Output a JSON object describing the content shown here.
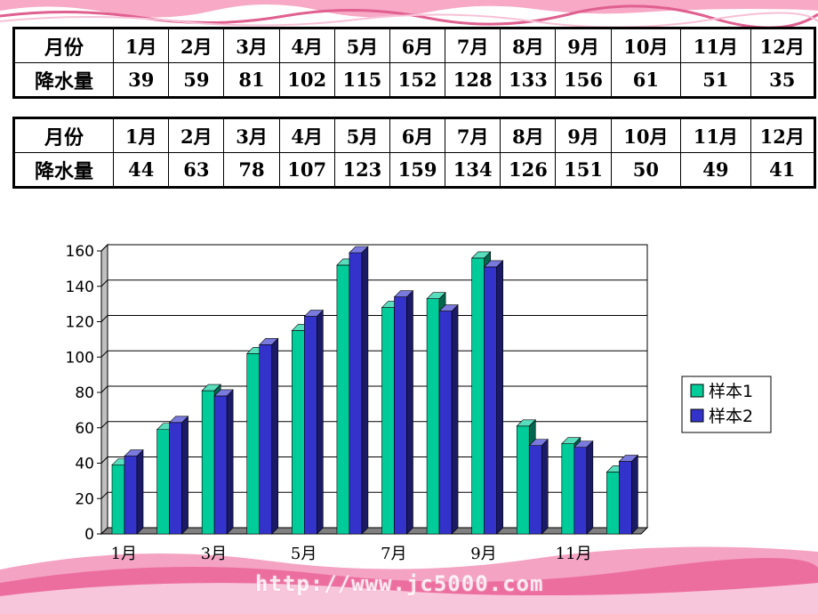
{
  "tables": [
    {
      "header_label": "月份",
      "value_label": "降水量",
      "months": [
        "1月",
        "2月",
        "3月",
        "4月",
        "5月",
        "6月",
        "7月",
        "8月",
        "9月",
        "10月",
        "11月",
        "12月"
      ],
      "values": [
        "39",
        "59",
        "81",
        "102",
        "115",
        "152",
        "128",
        "133",
        "156",
        "61",
        "51",
        "35"
      ]
    },
    {
      "header_label": "月份",
      "value_label": "降水量",
      "months": [
        "1月",
        "2月",
        "3月",
        "4月",
        "5月",
        "6月",
        "7月",
        "8月",
        "9月",
        "10月",
        "11月",
        "12月"
      ],
      "values": [
        "44",
        "63",
        "78",
        "107",
        "123",
        "159",
        "134",
        "126",
        "151",
        "50",
        "49",
        "41"
      ]
    }
  ],
  "chart_data": {
    "type": "bar",
    "categories": [
      "1月",
      "2月",
      "3月",
      "4月",
      "5月",
      "6月",
      "7月",
      "8月",
      "9月",
      "10月",
      "11月",
      "12月"
    ],
    "x_tick_labels": [
      "1月",
      "",
      "3月",
      "",
      "5月",
      "",
      "7月",
      "",
      "9月",
      "",
      "11月",
      ""
    ],
    "series": [
      {
        "name": "样本1",
        "color": "#00cc99",
        "values": [
          39,
          59,
          81,
          102,
          115,
          152,
          128,
          133,
          156,
          61,
          51,
          35
        ]
      },
      {
        "name": "样本2",
        "color": "#3333cc",
        "values": [
          44,
          63,
          78,
          107,
          123,
          159,
          134,
          126,
          151,
          50,
          49,
          41
        ]
      }
    ],
    "ylim": [
      0,
      160
    ],
    "yticks": [
      "0",
      "20",
      "40",
      "60",
      "80",
      "100",
      "120",
      "140",
      "160"
    ],
    "grid": true,
    "legend": "right"
  },
  "watermark": "http://www.jc5000.com",
  "colors": {
    "decoration": "#f06aa0",
    "gridline": "#000000"
  }
}
